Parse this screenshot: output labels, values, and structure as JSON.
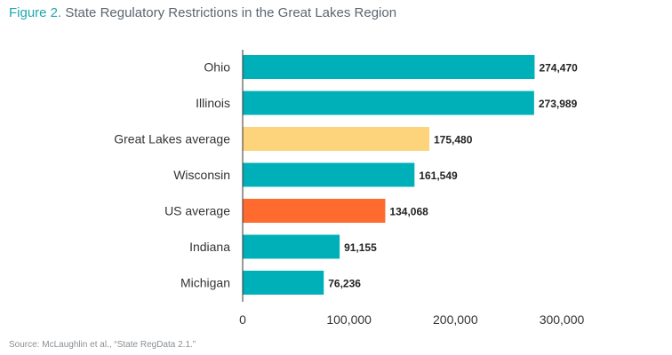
{
  "title": {
    "figure_label": "Figure 2.",
    "text": "State Regulatory Restrictions in the Great Lakes Region"
  },
  "source": "Source: McLaughlin et al., “State RegData 2.1.”",
  "colors": {
    "state": "#00b0b9",
    "great_lakes_average": "#fdd47c",
    "us_average": "#ff6a2f",
    "title_accent": "#20a7b0",
    "axis": "#333333"
  },
  "chart_data": {
    "type": "bar",
    "orientation": "horizontal",
    "title": "State Regulatory Restrictions in the Great Lakes Region",
    "categories": [
      "Ohio",
      "Illinois",
      "Great Lakes average",
      "Wisconsin",
      "US average",
      "Indiana",
      "Michigan"
    ],
    "values": [
      274470,
      273989,
      175480,
      161549,
      134068,
      91155,
      76236
    ],
    "value_labels": [
      "274,470",
      "273,989",
      "175,480",
      "161,549",
      "134,068",
      "91,155",
      "76,236"
    ],
    "bar_colors": [
      "#00b0b9",
      "#00b0b9",
      "#fdd47c",
      "#00b0b9",
      "#ff6a2f",
      "#00b0b9",
      "#00b0b9"
    ],
    "xlim": [
      0,
      300000
    ],
    "xticks": [
      0,
      100000,
      200000,
      300000
    ],
    "xtick_labels": [
      "0",
      "100,000",
      "200,000",
      "300,000"
    ],
    "xlabel": "",
    "ylabel": "",
    "grid": false,
    "legend": "none"
  }
}
